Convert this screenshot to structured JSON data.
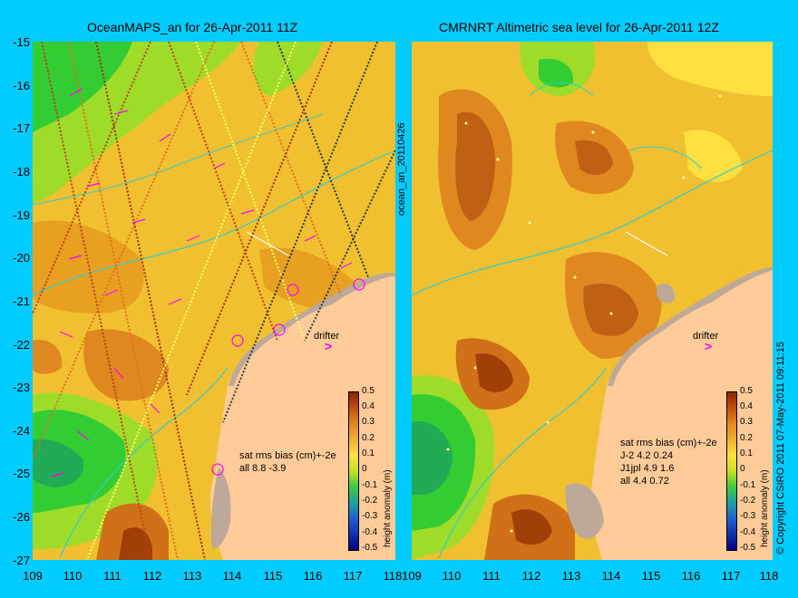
{
  "left_title": "OceanMAPS_an for 26-Apr-2011 11Z",
  "right_title": "CMRNRT Altimetric sea level  for 26-Apr-2011 12Z",
  "y_ticks": [
    "-15",
    "-16",
    "-17",
    "-18",
    "-19",
    "-20",
    "-21",
    "-22",
    "-23",
    "-24",
    "-25",
    "-26",
    "-27"
  ],
  "x_ticks": [
    "109",
    "110",
    "111",
    "112",
    "113",
    "114",
    "115",
    "116",
    "117",
    "118"
  ],
  "mid_label": "ocean_an_20110426",
  "copyright": "© Copyright CSIRO 2011   07-May-2011 09:11:15",
  "colorbar": {
    "ticks": [
      "0.5",
      "0.4",
      "0.3",
      "0.2",
      "0.1",
      "0",
      "-0.1",
      "-0.2",
      "-0.3",
      "-0.4",
      "-0.5"
    ],
    "label": "height anomaly (m)"
  },
  "left_stats": {
    "header": "sat rms bias (cm)+-2e",
    "lines": [
      "all 8.8 -3.9"
    ]
  },
  "right_stats": {
    "header": "sat rms bias (cm)+-2e",
    "lines": [
      "J-2    4.2 0.24",
      "J1jpl  4.9 1.6",
      "all 4.4 0.72"
    ]
  },
  "drifter_label": "drifter",
  "colors": {
    "background": "#00ccff",
    "land": "#ffcc99",
    "ocean_green": "#33cc33",
    "ocean_yellow": "#f0c030",
    "ocean_orange": "#e08820",
    "ocean_brown": "#a04008",
    "vector": "#ff00ff",
    "contour": "#33cccc"
  }
}
